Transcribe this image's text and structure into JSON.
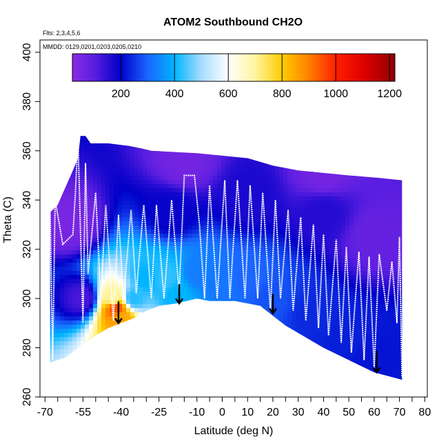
{
  "chart_data": {
    "type": "heatmap",
    "title": "ATOM2 Southbound CH2O",
    "annotation_flights": "Flts: 2,3,4,5,6",
    "annotation_dates": "MMDD: 0129,0201,0203,0205,0210",
    "xlabel": "Latitude (deg N)",
    "ylabel": "Theta (C)",
    "xlim": [
      -72,
      81
    ],
    "ylim": [
      260,
      405
    ],
    "x_ticks": [
      -70,
      -65,
      -60,
      -55,
      -50,
      -45,
      -40,
      -35,
      -30,
      -25,
      -20,
      -15,
      -10,
      -5,
      0,
      5,
      10,
      15,
      20,
      25,
      30,
      35,
      40,
      45,
      50,
      55,
      60,
      65,
      70,
      75,
      80
    ],
    "x_tick_labels": [
      "-70",
      "-55",
      "-40",
      "-25",
      "-10",
      "0",
      "10",
      "20",
      "30",
      "40",
      "50",
      "60",
      "70",
      "80"
    ],
    "x_tick_label_values": [
      -70,
      -55,
      -40,
      -25,
      -10,
      0,
      10,
      20,
      30,
      40,
      50,
      60,
      70,
      80
    ],
    "y_ticks": [
      260,
      280,
      300,
      320,
      340,
      360,
      380,
      400
    ],
    "y_tick_labels": [
      "260",
      "280",
      "300",
      "320",
      "340",
      "360",
      "380",
      "400"
    ],
    "colorbar": {
      "range": [
        20,
        1220
      ],
      "ticks": [
        200,
        400,
        600,
        800,
        1000,
        1200
      ],
      "tick_labels": [
        "200",
        "400",
        "600",
        "800",
        "1000",
        "1200"
      ],
      "stops": [
        {
          "value": 20,
          "color": "#8a2be2"
        },
        {
          "value": 100,
          "color": "#5a1ee0"
        },
        {
          "value": 200,
          "color": "#0000c8"
        },
        {
          "value": 300,
          "color": "#1a66ff"
        },
        {
          "value": 400,
          "color": "#00b4ff"
        },
        {
          "value": 500,
          "color": "#a8dcff"
        },
        {
          "value": 600,
          "color": "#ffffff"
        },
        {
          "value": 700,
          "color": "#fff5a0"
        },
        {
          "value": 800,
          "color": "#ffcc00"
        },
        {
          "value": 900,
          "color": "#ff8000"
        },
        {
          "value": 1000,
          "color": "#ff2000"
        },
        {
          "value": 1100,
          "color": "#e00000"
        },
        {
          "value": 1220,
          "color": "#900000"
        }
      ]
    },
    "top_boundary": [
      [
        -68,
        335
      ],
      [
        -65,
        338
      ],
      [
        -62,
        345
      ],
      [
        -59,
        352
      ],
      [
        -57,
        357
      ],
      [
        -56,
        366
      ],
      [
        -54,
        366
      ],
      [
        -52,
        363
      ],
      [
        -45,
        363
      ],
      [
        -37,
        362
      ],
      [
        -32,
        361
      ],
      [
        -28,
        360
      ],
      [
        -10,
        359
      ],
      [
        0,
        358
      ],
      [
        10,
        357
      ],
      [
        20,
        354
      ],
      [
        30,
        352
      ],
      [
        50,
        350
      ],
      [
        62,
        349
      ],
      [
        71,
        348
      ]
    ],
    "bottom_boundary": [
      [
        -68,
        274
      ],
      [
        -62,
        276
      ],
      [
        -55,
        281
      ],
      [
        -50,
        285
      ],
      [
        -45,
        288
      ],
      [
        -40,
        290
      ],
      [
        -35,
        292
      ],
      [
        -30,
        295
      ],
      [
        -25,
        297
      ],
      [
        -18,
        298
      ],
      [
        -10,
        300
      ],
      [
        -5,
        299
      ],
      [
        5,
        299
      ],
      [
        15,
        297
      ],
      [
        20,
        293
      ],
      [
        25,
        289
      ],
      [
        30,
        286
      ],
      [
        40,
        280
      ],
      [
        50,
        275
      ],
      [
        60,
        270
      ],
      [
        71,
        267
      ]
    ],
    "field_points": [
      {
        "lat": -42,
        "theta": 296,
        "value": 950
      },
      {
        "lat": -40,
        "theta": 292,
        "value": 850
      },
      {
        "lat": -43,
        "theta": 300,
        "value": 700
      },
      {
        "lat": -35,
        "theta": 300,
        "value": 420
      },
      {
        "lat": -30,
        "theta": 308,
        "value": 400
      },
      {
        "lat": -22,
        "theta": 308,
        "value": 430
      },
      {
        "lat": -18,
        "theta": 302,
        "value": 400
      },
      {
        "lat": -10,
        "theta": 310,
        "value": 330
      },
      {
        "lat": 0,
        "theta": 306,
        "value": 320
      },
      {
        "lat": 10,
        "theta": 308,
        "value": 300
      },
      {
        "lat": 20,
        "theta": 300,
        "value": 280
      },
      {
        "lat": 35,
        "theta": 295,
        "value": 240
      },
      {
        "lat": 50,
        "theta": 285,
        "value": 230
      },
      {
        "lat": 60,
        "theta": 278,
        "value": 220
      },
      {
        "lat": -55,
        "theta": 300,
        "value": 120
      },
      {
        "lat": -20,
        "theta": 335,
        "value": 190
      },
      {
        "lat": 10,
        "theta": 340,
        "value": 170
      },
      {
        "lat": 40,
        "theta": 335,
        "value": 160
      },
      {
        "lat": -15,
        "theta": 355,
        "value": 60
      },
      {
        "lat": 40,
        "theta": 350,
        "value": 60
      },
      {
        "lat": 60,
        "theta": 325,
        "value": 80
      },
      {
        "lat": -60,
        "theta": 330,
        "value": 50
      }
    ],
    "flight_track": [
      [
        -68,
        335
      ],
      [
        -67,
        275
      ],
      [
        -66,
        340
      ],
      [
        -63,
        322
      ],
      [
        -59,
        326
      ],
      [
        -58,
        343
      ],
      [
        -57,
        365
      ],
      [
        -55,
        290
      ],
      [
        -54,
        355
      ],
      [
        -53,
        310
      ],
      [
        -50,
        343
      ],
      [
        -48,
        300
      ],
      [
        -46,
        338
      ],
      [
        -43,
        291
      ],
      [
        -41,
        334
      ],
      [
        -39,
        300
      ],
      [
        -36,
        336
      ],
      [
        -34,
        302
      ],
      [
        -31,
        338
      ],
      [
        -28,
        300
      ],
      [
        -26,
        338
      ],
      [
        -23,
        300
      ],
      [
        -20,
        340
      ],
      [
        -17,
        302
      ],
      [
        -15,
        350
      ],
      [
        -11,
        350
      ],
      [
        -9,
        330
      ],
      [
        -7,
        300
      ],
      [
        -5,
        346
      ],
      [
        -2,
        300
      ],
      [
        1,
        348
      ],
      [
        3,
        300
      ],
      [
        6,
        348
      ],
      [
        9,
        300
      ],
      [
        11,
        346
      ],
      [
        14,
        300
      ],
      [
        16,
        343
      ],
      [
        19,
        295
      ],
      [
        21,
        340
      ],
      [
        23,
        300
      ],
      [
        26,
        336
      ],
      [
        28,
        295
      ],
      [
        31,
        333
      ],
      [
        33,
        291
      ],
      [
        36,
        330
      ],
      [
        38,
        288
      ],
      [
        40,
        326
      ],
      [
        42,
        285
      ],
      [
        45,
        324
      ],
      [
        47,
        282
      ],
      [
        49,
        321
      ],
      [
        51,
        278
      ],
      [
        54,
        319
      ],
      [
        56,
        275
      ],
      [
        58,
        317
      ],
      [
        60,
        272
      ],
      [
        62,
        318
      ],
      [
        65,
        295
      ],
      [
        67,
        315
      ],
      [
        69,
        290
      ],
      [
        70,
        325
      ],
      [
        71,
        268
      ]
    ],
    "markers": [
      {
        "lat": -41,
        "theta_top": 296,
        "theta_bottom": 290
      },
      {
        "lat": -17,
        "theta_top": 303,
        "theta_bottom": 298
      },
      {
        "lat": 20,
        "theta_top": 299,
        "theta_bottom": 294
      },
      {
        "lat": 61,
        "theta_top": 276,
        "theta_bottom": 270
      }
    ]
  }
}
